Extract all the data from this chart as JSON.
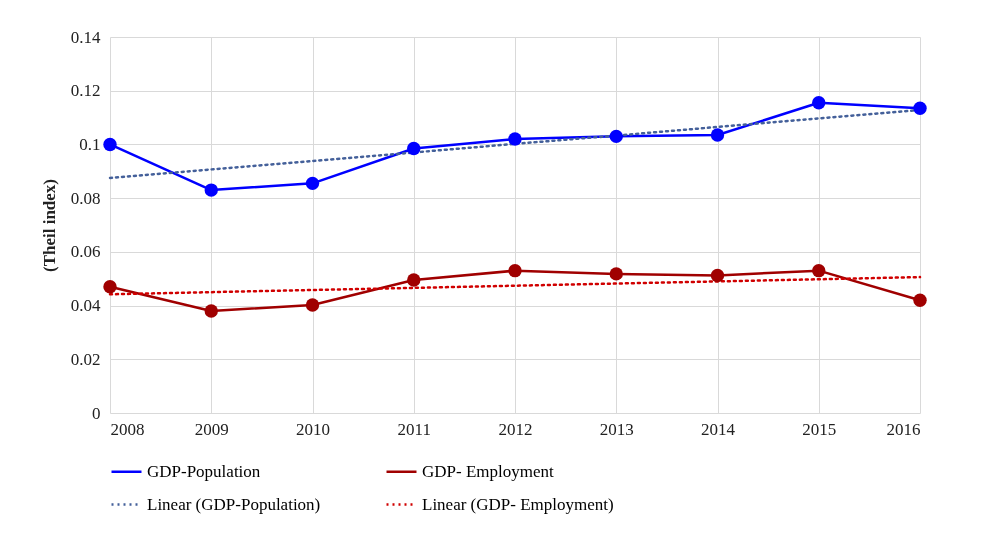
{
  "chart_data": {
    "type": "line",
    "ylabel": "(Theil index)",
    "x": [
      2008,
      2009,
      2010,
      2011,
      2012,
      2013,
      2014,
      2015,
      2016
    ],
    "xlim": [
      2008,
      2016
    ],
    "xticks": [
      2008,
      2009,
      2010,
      2011,
      2012,
      2013,
      2014,
      2015,
      2016
    ],
    "ylim": [
      0,
      0.14
    ],
    "yticks": [
      0,
      0.02,
      0.04,
      0.06,
      0.08,
      0.1,
      0.12,
      0.14
    ],
    "grid": true,
    "legend": "bottom",
    "marker": "circle",
    "line_style": "solid",
    "series": [
      {
        "name": "GDP-Population",
        "color": "#0000ff",
        "values": [
          0.1,
          0.083,
          0.0855,
          0.0985,
          0.102,
          0.103,
          0.1035,
          0.1155,
          0.1135
        ]
      },
      {
        "name": "GDP- Employment",
        "color": "#a00000",
        "values": [
          0.047,
          0.038,
          0.0402,
          0.0495,
          0.053,
          0.0518,
          0.0512,
          0.053,
          0.042
        ]
      },
      {
        "name": "Linear (GDP-Population)",
        "color": "#44609a",
        "type": "line",
        "values": [
          0.0875,
          0.0907,
          0.0938,
          0.097,
          0.1002,
          0.1033,
          0.1065,
          0.1097,
          0.1128
        ],
        "line_style": "dotted",
        "marker": "none"
      },
      {
        "name": "Linear (GDP- Employment)",
        "color": "#d00000",
        "type": "line",
        "values": [
          0.0442,
          0.045,
          0.0458,
          0.0466,
          0.0474,
          0.0482,
          0.049,
          0.0498,
          0.0506
        ],
        "line_style": "dotted",
        "marker": "none"
      }
    ]
  }
}
